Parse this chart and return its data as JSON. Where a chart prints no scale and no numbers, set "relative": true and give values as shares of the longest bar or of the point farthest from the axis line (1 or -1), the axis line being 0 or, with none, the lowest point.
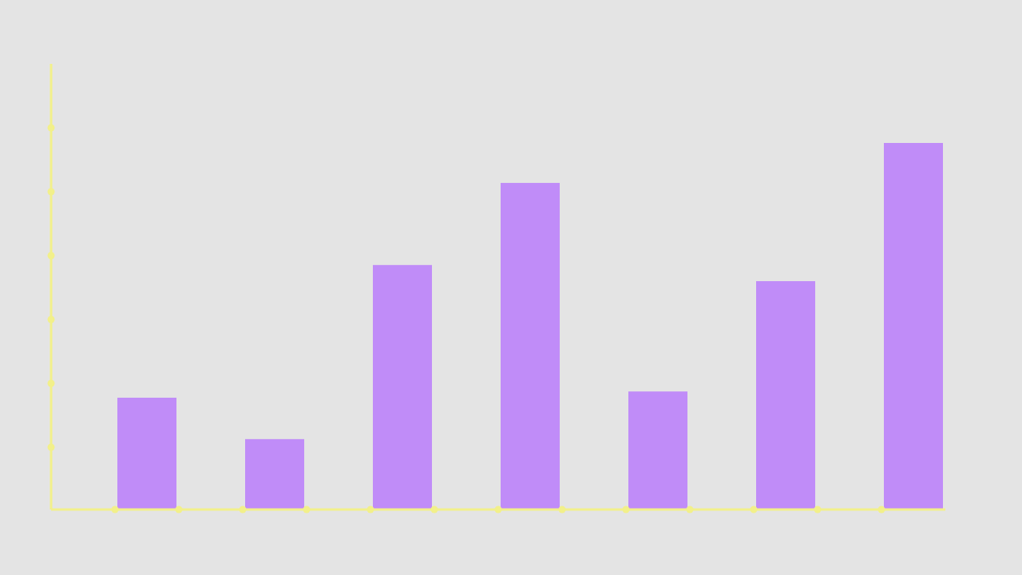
{
  "chart_data": {
    "type": "bar",
    "relative": true,
    "categories": [
      null,
      null,
      null,
      null,
      null,
      null,
      null
    ],
    "values": [
      0.305,
      0.192,
      0.667,
      0.891,
      0.322,
      0.623,
      1
    ],
    "color": "#c08cf8"
  }
}
